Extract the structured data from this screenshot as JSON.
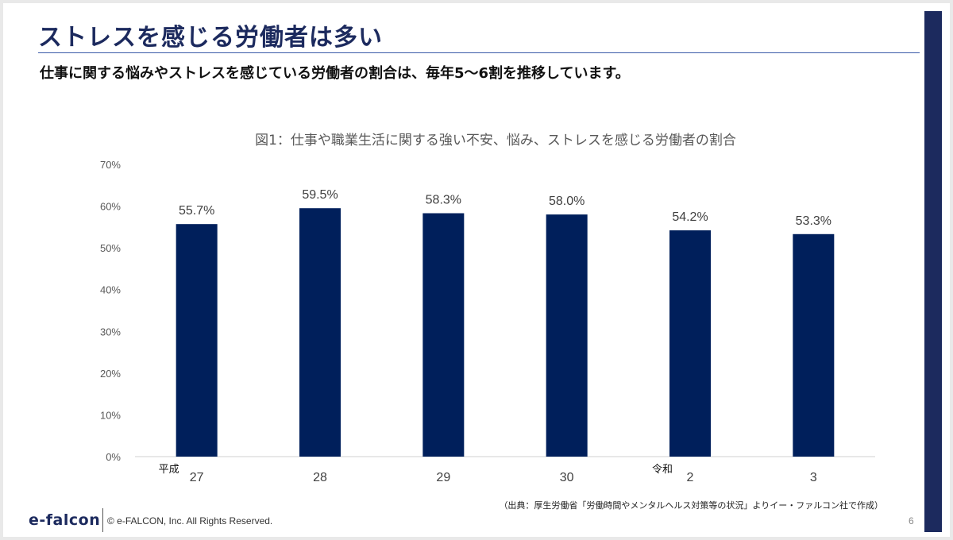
{
  "slide": {
    "title": "ストレスを感じる労働者は多い",
    "subtitle": "仕事に関する悩みやストレスを感じている労働者の割合は、毎年5～6割を推移しています。",
    "source": "（出典：厚生労働省「労働時間やメンタルヘルス対策等の状況」よりイー・ファルコン社で作成）",
    "logo": "e-falcon",
    "copyright": "© e-FALCON, Inc. All Rights Reserved.",
    "page_number": "6"
  },
  "colors": {
    "bar": "#001f5b",
    "title": "#1c2a5e",
    "accent_bar": "#1c2a5e"
  },
  "chart_data": {
    "type": "bar",
    "title": "図1：仕事や職業生活に関する強い不安、悩み、ストレスを感じる労働者の割合",
    "categories": [
      "27",
      "28",
      "29",
      "30",
      "2",
      "3"
    ],
    "era_labels": [
      {
        "label": "平成",
        "category_index": 0
      },
      {
        "label": "令和",
        "category_index": 4
      }
    ],
    "values": [
      55.7,
      59.5,
      58.3,
      58.0,
      54.2,
      53.3
    ],
    "data_labels": [
      "55.7%",
      "59.5%",
      "58.3%",
      "58.0%",
      "54.2%",
      "53.3%"
    ],
    "y_ticks": [
      "0%",
      "10%",
      "20%",
      "30%",
      "40%",
      "50%",
      "60%",
      "70%"
    ],
    "ylim": [
      0,
      70
    ],
    "grid": false,
    "legend": "none",
    "xlabel": "",
    "ylabel": ""
  }
}
